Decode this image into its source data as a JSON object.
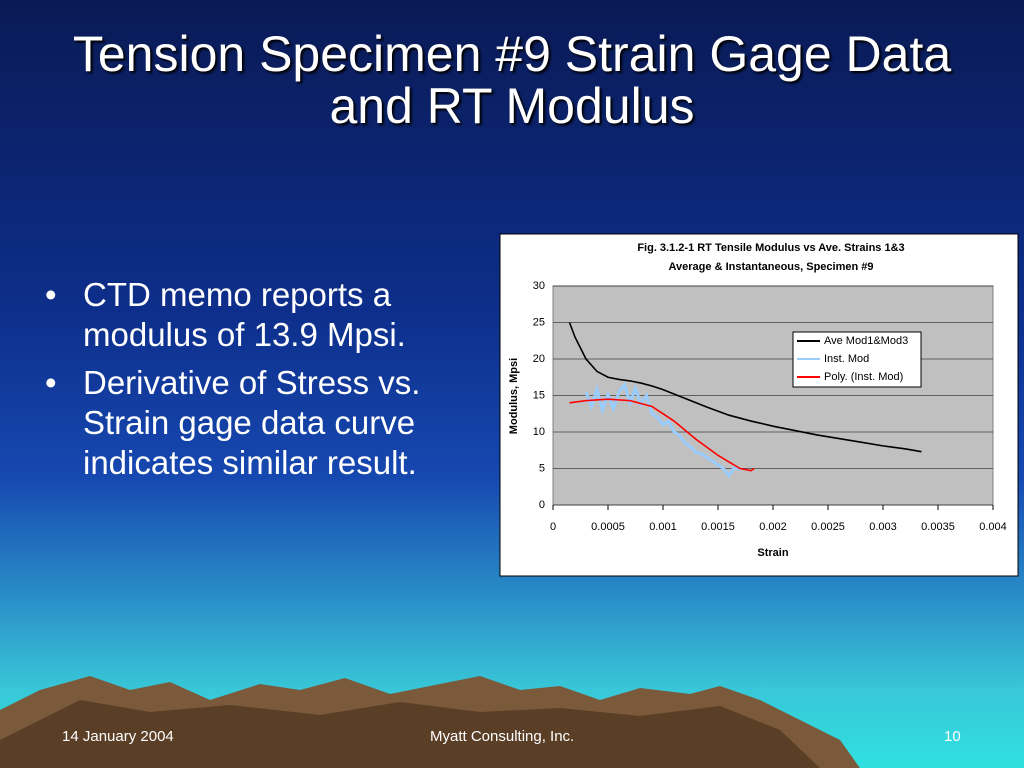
{
  "slide": {
    "title": "Tension Specimen #9 Strain Gage Data and RT Modulus",
    "bullets": [
      "CTD memo reports a modulus of 13.9 Mpsi.",
      "Derivative of Stress vs. Strain gage data curve indicates similar result."
    ],
    "footer": {
      "date": "14 January 2004",
      "company": "Myatt Consulting, Inc.",
      "page": "10"
    }
  },
  "chart_data": {
    "type": "line",
    "title": "Fig. 3.1.2-1 RT Tensile Modulus vs Ave. Strains 1&3",
    "subtitle": "Average & Instantaneous, Specimen #9",
    "x_label": "Strain",
    "y_label": "Modulus, Mpsi",
    "xlim": [
      0,
      0.004
    ],
    "xticks": [
      0,
      0.0005,
      0.001,
      0.0015,
      0.002,
      0.0025,
      0.003,
      0.0035,
      0.004
    ],
    "ylim": [
      0,
      30
    ],
    "yticks": [
      0,
      5,
      10,
      15,
      20,
      25,
      30
    ],
    "grid": true,
    "legend": "upper right",
    "series": [
      {
        "name": "Ave Mod1&Mod3",
        "color": "#000000",
        "x": [
          0.00015,
          0.0002,
          0.0003,
          0.0004,
          0.0005,
          0.0006,
          0.0007,
          0.0008,
          0.0009,
          0.001,
          0.0012,
          0.0014,
          0.0016,
          0.0018,
          0.002,
          0.0022,
          0.0024,
          0.0026,
          0.0028,
          0.003,
          0.0032,
          0.00335
        ],
        "values": [
          25,
          23,
          20,
          18.3,
          17.5,
          17.2,
          17,
          16.7,
          16.3,
          15.8,
          14.6,
          13.4,
          12.3,
          11.5,
          10.8,
          10.2,
          9.6,
          9.1,
          8.6,
          8.1,
          7.7,
          7.3
        ]
      },
      {
        "name": "Inst. Mod",
        "color": "#99ccff",
        "x": [
          0.0003,
          0.00035,
          0.0004,
          0.00045,
          0.0005,
          0.00055,
          0.0006,
          0.00065,
          0.0007,
          0.00075,
          0.0008,
          0.00085,
          0.0009,
          0.00095,
          0.001,
          0.00105,
          0.0011,
          0.00115,
          0.0012,
          0.00125,
          0.0013,
          0.00135,
          0.0014,
          0.00145,
          0.0015,
          0.00155,
          0.0016,
          0.00165,
          0.0017
        ],
        "values": [
          15.5,
          13.5,
          15.8,
          13,
          15.2,
          13.2,
          15.5,
          16.5,
          14,
          16,
          13.8,
          15,
          12.5,
          12,
          11,
          11.5,
          10,
          9.5,
          8.5,
          8,
          7.2,
          7,
          6.5,
          6,
          5.5,
          5,
          4,
          5.2,
          4.8
        ]
      },
      {
        "name": "Poly. (Inst. Mod)",
        "color": "#ff0000",
        "x": [
          0.00015,
          0.0003,
          0.0005,
          0.0007,
          0.0009,
          0.0011,
          0.0013,
          0.0015,
          0.0017,
          0.0018,
          0.00183
        ],
        "values": [
          14,
          14.3,
          14.5,
          14.3,
          13.5,
          11.5,
          9,
          6.8,
          5,
          4.7,
          5
        ]
      }
    ]
  }
}
